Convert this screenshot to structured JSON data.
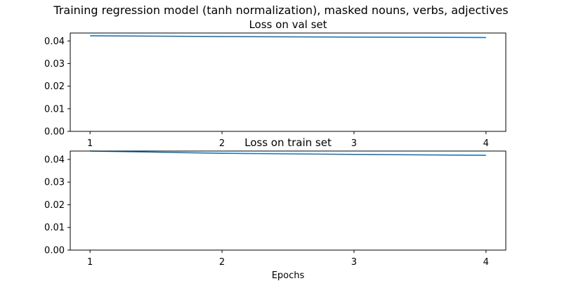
{
  "figure": {
    "title": "Training regression model (tanh normalization), masked nouns, verbs, adjectives"
  },
  "chart_data": [
    {
      "type": "line",
      "title": "Loss on val set",
      "xlabel": "",
      "ylabel": "",
      "x": [
        1,
        2,
        3,
        4
      ],
      "xticks": [
        "1",
        "2",
        "3",
        "4"
      ],
      "yticks": [
        "0.00",
        "0.01",
        "0.02",
        "0.03",
        "0.04"
      ],
      "xlim": [
        0.85,
        4.15
      ],
      "ylim": [
        0,
        0.0435
      ],
      "grid": false,
      "series": [
        {
          "values": [
            0.0423,
            0.0419,
            0.0417,
            0.0415
          ],
          "color": "#1f77b4"
        }
      ]
    },
    {
      "type": "line",
      "title": "Loss on train set",
      "xlabel": "Epochs",
      "ylabel": "",
      "x": [
        1,
        2,
        3,
        4
      ],
      "xticks": [
        "1",
        "2",
        "3",
        "4"
      ],
      "yticks": [
        "0.00",
        "0.01",
        "0.02",
        "0.03",
        "0.04"
      ],
      "xlim": [
        0.85,
        4.15
      ],
      "ylim": [
        0,
        0.0437
      ],
      "grid": false,
      "series": [
        {
          "values": [
            0.0437,
            0.0427,
            0.0422,
            0.0418
          ],
          "color": "#1f77b4"
        }
      ]
    }
  ]
}
